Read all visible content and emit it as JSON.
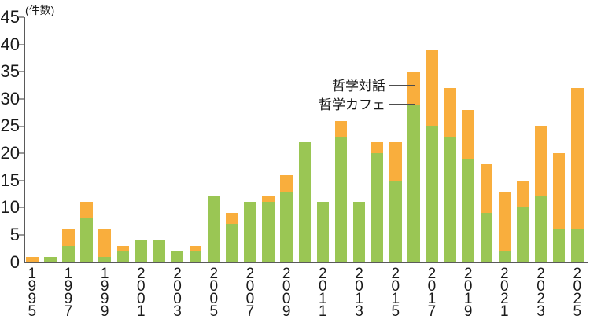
{
  "chart_data": {
    "type": "bar",
    "stacked": true,
    "y_axis_label": "(件数)",
    "ylim": [
      0,
      45
    ],
    "yticks": [
      0,
      5,
      10,
      15,
      20,
      25,
      30,
      35,
      40,
      45
    ],
    "grid": false,
    "legend_position": "inline-annotations",
    "categories": [
      1995,
      1996,
      1997,
      1998,
      1999,
      2000,
      2001,
      2002,
      2003,
      2004,
      2005,
      2006,
      2007,
      2008,
      2009,
      2010,
      2011,
      2012,
      2013,
      2014,
      2015,
      2016,
      2017,
      2018,
      2019,
      2020,
      2021,
      2022,
      2023,
      2024,
      2025
    ],
    "x_tick_labeled_years": [
      1995,
      1997,
      1999,
      2001,
      2003,
      2005,
      2007,
      2009,
      2011,
      2013,
      2015,
      2017,
      2019,
      2021,
      2023,
      2025
    ],
    "series": [
      {
        "name": "哲学カフェ",
        "color": "#9AC654",
        "values": [
          0,
          1,
          3,
          8,
          1,
          2,
          4,
          4,
          2,
          2,
          12,
          7,
          11,
          11,
          13,
          22,
          11,
          23,
          11,
          20,
          15,
          29,
          25,
          23,
          19,
          9,
          2,
          10,
          12,
          6,
          6
        ]
      },
      {
        "name": "哲学対話",
        "color": "#F9AE3D",
        "values": [
          1,
          0,
          3,
          3,
          5,
          1,
          0,
          0,
          0,
          1,
          0,
          2,
          0,
          1,
          3,
          0,
          0,
          3,
          0,
          2,
          7,
          6,
          14,
          9,
          9,
          9,
          11,
          5,
          13,
          14,
          26
        ]
      }
    ],
    "annotations": [
      {
        "label": "哲学対話",
        "target_year": 2016,
        "target_series": "哲学対話"
      },
      {
        "label": "哲学カフェ",
        "target_year": 2016,
        "target_series": "哲学カフェ"
      }
    ]
  },
  "colors": {
    "cafe_green": "#9AC654",
    "taiwa_orange": "#F9AE3D",
    "axis": "#5a5a5a",
    "tick": "#9a9a9a",
    "text": "#1a1a1a"
  }
}
